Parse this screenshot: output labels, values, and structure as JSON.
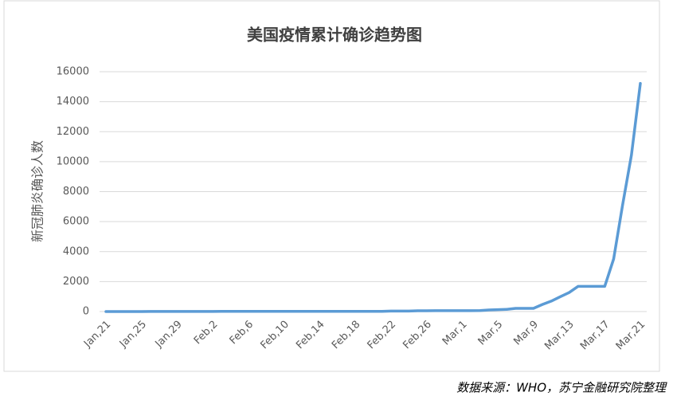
{
  "chart_data": {
    "type": "line",
    "title": "美国疫情累计确诊趋势图",
    "y_label": "新冠肺炎确诊人数",
    "source": "数据来源：WHO，苏宁金融研究院整理",
    "categories": [
      "Jan,21",
      null,
      null,
      null,
      "Jan,25",
      null,
      null,
      null,
      "Jan,29",
      null,
      null,
      null,
      "Feb,2",
      null,
      null,
      null,
      "Feb,6",
      null,
      null,
      null,
      "Feb,10",
      null,
      null,
      null,
      "Feb,14",
      null,
      null,
      null,
      "Feb,18",
      null,
      null,
      null,
      "Feb,22",
      null,
      null,
      null,
      "Feb,26",
      null,
      null,
      null,
      "Mar,1",
      null,
      null,
      null,
      "Mar,5",
      null,
      null,
      null,
      "Mar,9",
      null,
      null,
      null,
      "Mar,13",
      null,
      null,
      null,
      "Mar,17",
      null,
      null,
      null,
      "Mar,21"
    ],
    "values": [
      1,
      1,
      1,
      2,
      2,
      5,
      5,
      5,
      5,
      5,
      6,
      7,
      8,
      11,
      11,
      11,
      12,
      12,
      12,
      12,
      13,
      13,
      13,
      15,
      15,
      15,
      15,
      15,
      15,
      15,
      15,
      15,
      35,
      35,
      35,
      53,
      53,
      59,
      60,
      62,
      62,
      62,
      64,
      108,
      129,
      148,
      213,
      213,
      213,
      472,
      696,
      987,
      1264,
      1678,
      1678,
      1678,
      1678,
      3503,
      7087,
      10442,
      15219
    ],
    "color": "#5b9bd5",
    "ylim": [
      0,
      16000
    ],
    "yticks": [
      0,
      2000,
      4000,
      6000,
      8000,
      10000,
      12000,
      14000,
      16000
    ],
    "grid": true
  }
}
